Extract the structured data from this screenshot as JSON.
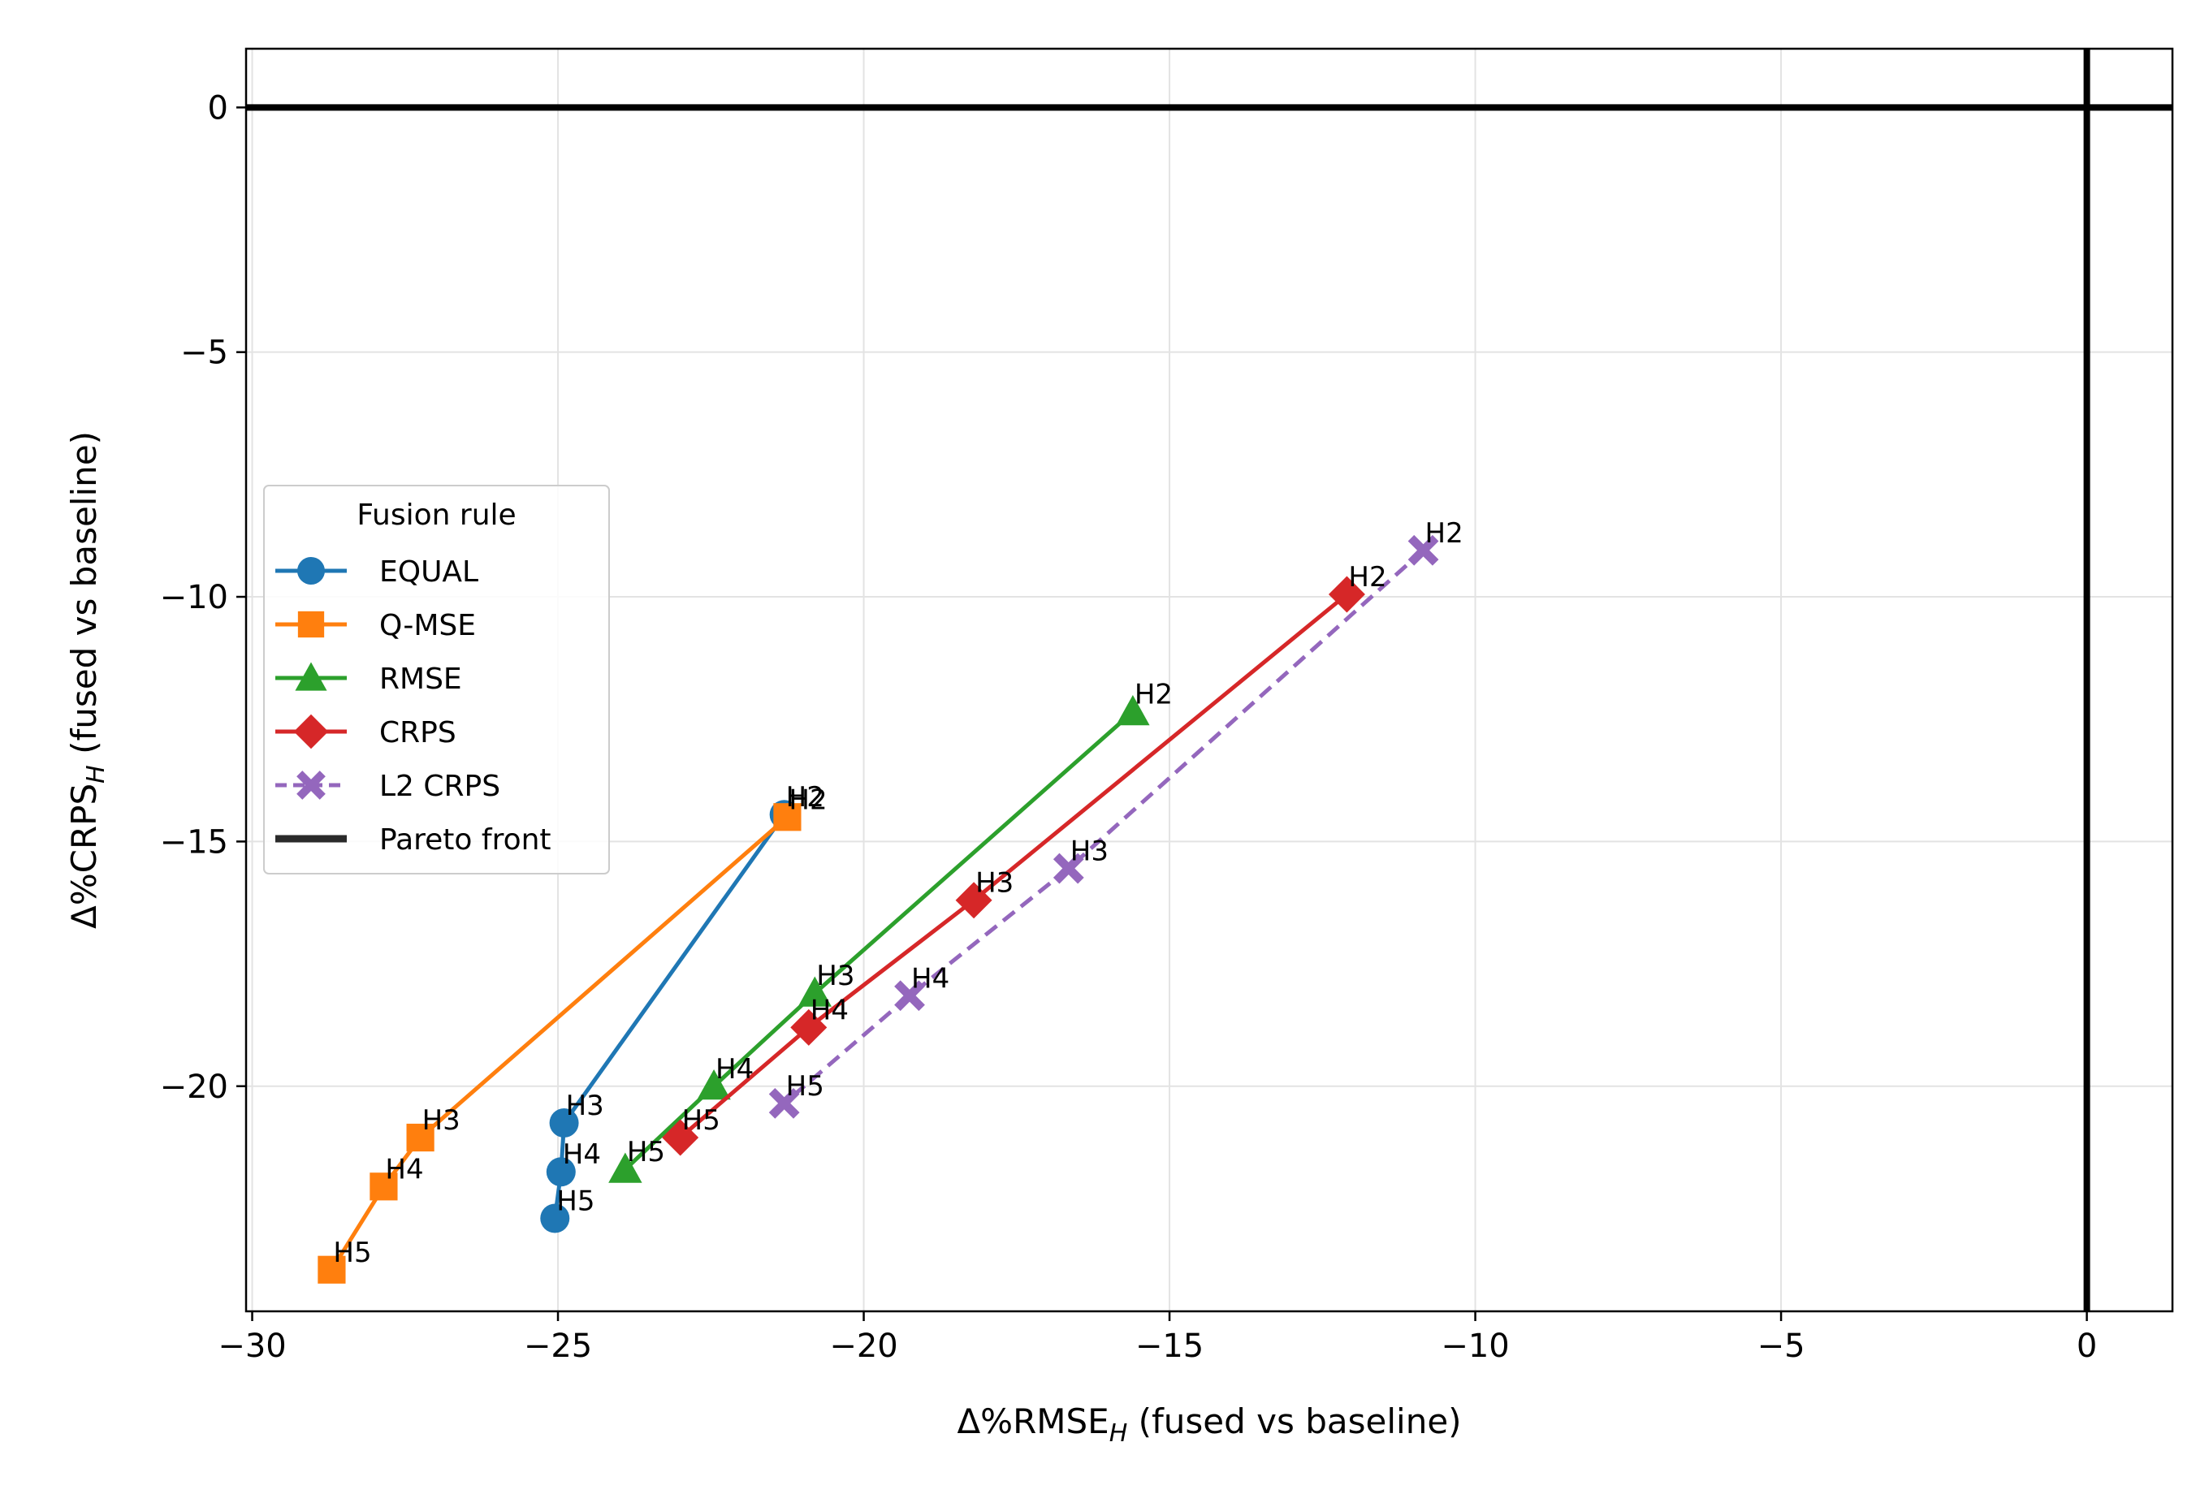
{
  "chart_data": {
    "type": "line",
    "xlabel_main": "Δ%RMSE",
    "xlabel_sub": "H",
    "xlabel_rest": " (fused vs baseline)",
    "ylabel_main": "Δ%CRPS",
    "ylabel_sub": "H",
    "ylabel_rest": " (fused vs baseline)",
    "xlim": [
      -30.1,
      1.4
    ],
    "ylim": [
      -24.6,
      1.2
    ],
    "xticks": [
      -30,
      -25,
      -20,
      -15,
      -10,
      -5,
      0
    ],
    "xtick_labels": [
      "−30",
      "−25",
      "−20",
      "−15",
      "−10",
      "−5",
      "0"
    ],
    "yticks": [
      0,
      -5,
      -10,
      -15,
      -20
    ],
    "ytick_labels": [
      "0",
      "−5",
      "−10",
      "−15",
      "−20"
    ],
    "grid": true,
    "legend_title": "Fusion rule",
    "legend_position": "center-left",
    "reference_lines": {
      "x": 0,
      "y": 0
    },
    "series": [
      {
        "name": "EQUAL",
        "color": "#1f77b4",
        "marker": "circle",
        "dash": false,
        "labels": [
          "H2",
          "H3",
          "H4",
          "H5"
        ],
        "x": [
          -21.3,
          -24.9,
          -24.95,
          -25.05
        ],
        "y": [
          -14.45,
          -20.75,
          -21.75,
          -22.7
        ]
      },
      {
        "name": "Q-MSE",
        "color": "#ff7f0e",
        "marker": "square",
        "dash": false,
        "labels": [
          "H2",
          "H3",
          "H4",
          "H5"
        ],
        "x": [
          -21.25,
          -27.25,
          -27.85,
          -28.7
        ],
        "y": [
          -14.5,
          -21.05,
          -22.05,
          -23.75
        ]
      },
      {
        "name": "RMSE",
        "color": "#2ca02c",
        "marker": "triangle",
        "dash": false,
        "labels": [
          "H2",
          "H3",
          "H4",
          "H5"
        ],
        "x": [
          -15.6,
          -20.8,
          -22.45,
          -23.9
        ],
        "y": [
          -12.35,
          -18.1,
          -20.0,
          -21.7
        ]
      },
      {
        "name": "CRPS",
        "color": "#d62728",
        "marker": "diamond",
        "dash": false,
        "labels": [
          "H2",
          "H3",
          "H4",
          "H5"
        ],
        "x": [
          -12.1,
          -18.2,
          -20.9,
          -23.0
        ],
        "y": [
          -9.95,
          -16.2,
          -18.8,
          -21.05
        ]
      },
      {
        "name": "L2 CRPS",
        "color": "#9467bd",
        "marker": "x",
        "dash": true,
        "labels": [
          "H2",
          "H3",
          "H4",
          "H5"
        ],
        "x": [
          -10.85,
          -16.65,
          -19.25,
          -21.3
        ],
        "y": [
          -9.05,
          -15.55,
          -18.15,
          -20.35
        ]
      }
    ],
    "legend_extra": {
      "name": "Pareto front",
      "color": "#2a2a2a"
    }
  }
}
